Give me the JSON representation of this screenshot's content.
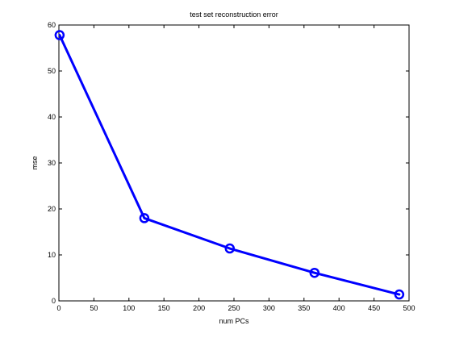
{
  "chart_data": {
    "type": "line",
    "title": "test set reconstruction error",
    "xlabel": "num PCs",
    "ylabel": "mse",
    "xlim": [
      0,
      500
    ],
    "ylim": [
      0,
      60
    ],
    "xticks": [
      0,
      50,
      100,
      150,
      200,
      250,
      300,
      350,
      400,
      450,
      500
    ],
    "yticks": [
      0,
      10,
      20,
      30,
      40,
      50,
      60
    ],
    "grid": false,
    "legend": "none",
    "series": [
      {
        "x": [
          1,
          122,
          244,
          365,
          486
        ],
        "y": [
          57.8,
          18.0,
          11.4,
          6.1,
          1.4
        ],
        "color": "#0000ff",
        "marker": "circle"
      }
    ]
  }
}
